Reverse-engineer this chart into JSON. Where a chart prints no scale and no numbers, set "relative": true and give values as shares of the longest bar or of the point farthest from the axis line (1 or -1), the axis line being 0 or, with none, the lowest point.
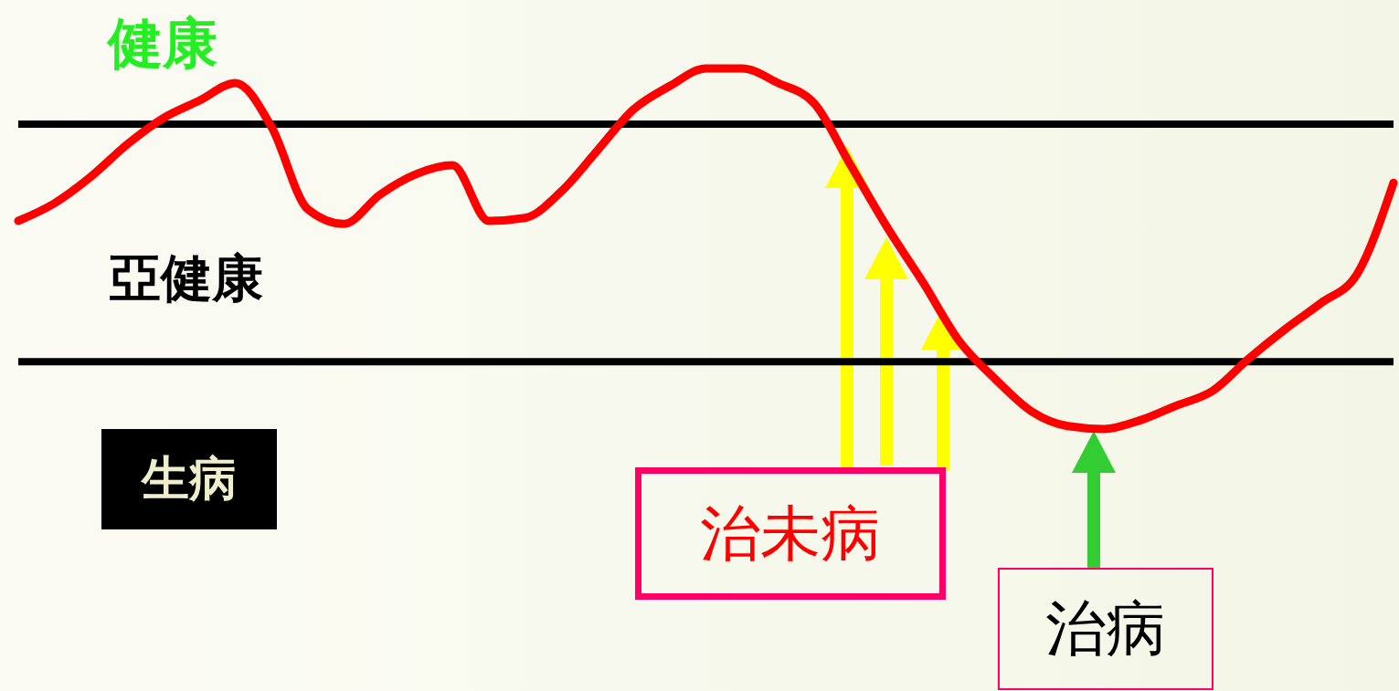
{
  "chart_data": {
    "type": "line",
    "relative": true,
    "color": "#ff0000",
    "categories": [
      null,
      null,
      null,
      null,
      null,
      null,
      null,
      null,
      null,
      null,
      null,
      null,
      null,
      null,
      null,
      null,
      null,
      null,
      null,
      null,
      null,
      null,
      null,
      null,
      null,
      null,
      null,
      null,
      null,
      null,
      null,
      null,
      null,
      null,
      null,
      null,
      null,
      null,
      null
    ],
    "values": [
      0.48,
      0.54,
      0.63,
      0.74,
      0.83,
      0.89,
      0.95,
      0.8,
      0.52,
      0.47,
      0.57,
      0.64,
      0.67,
      0.48,
      0.49,
      0.58,
      0.72,
      0.86,
      0.94,
      1,
      1,
      0.95,
      0.88,
      0.67,
      0.46,
      0.27,
      0.07,
      -0.06,
      -0.17,
      -0.22,
      -0.23,
      -0.2,
      -0.15,
      -0.1,
      0.01,
      0.11,
      0.2,
      0.3,
      0.61
    ],
    "ref_lines": [
      {
        "axis": "y",
        "value": 0.81,
        "color": "#000000"
      }
    ],
    "annotations": [
      "健康",
      "亞健康",
      "生病",
      "治未病",
      "治病"
    ],
    "marker": "none"
  }
}
